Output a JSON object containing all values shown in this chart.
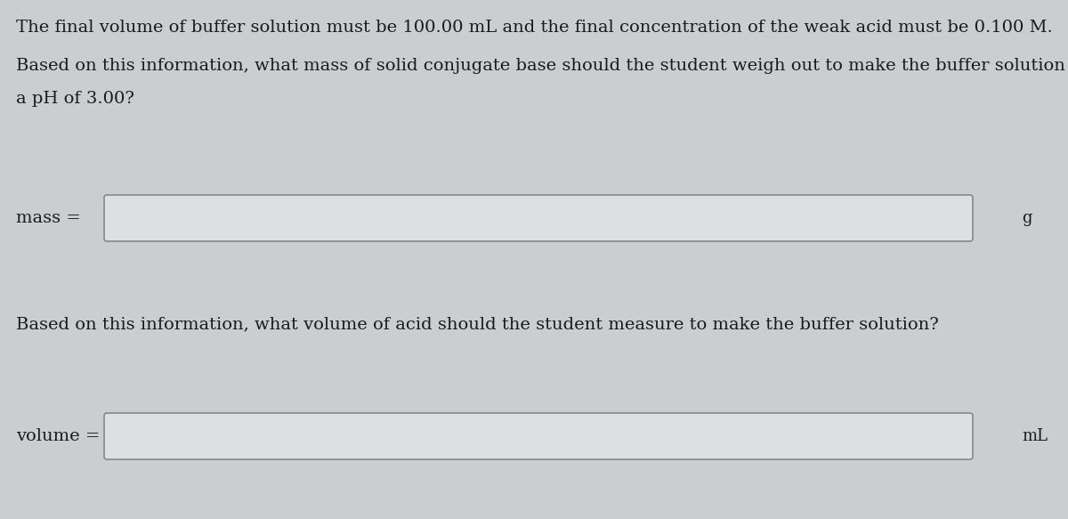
{
  "background_color": "#caced0",
  "text_color": "#1a1a1a",
  "line1": "The final volume of buffer solution must be 100.00 mL and the final concentration of the weak acid must be 0.100 M.",
  "line2": "Based on this information, what mass of solid conjugate base should the student weigh out to make the buffer solution with",
  "line3": "a pH of 3.00?",
  "line4": "Based on this information, what volume of acid should the student measure to make the buffer solution?",
  "mass_label": "mass =",
  "volume_label": "volume =",
  "unit1": "g",
  "unit2": "mL",
  "box_fill": "#dce0e0",
  "box_edge": "#888888",
  "font_size": 14.0
}
